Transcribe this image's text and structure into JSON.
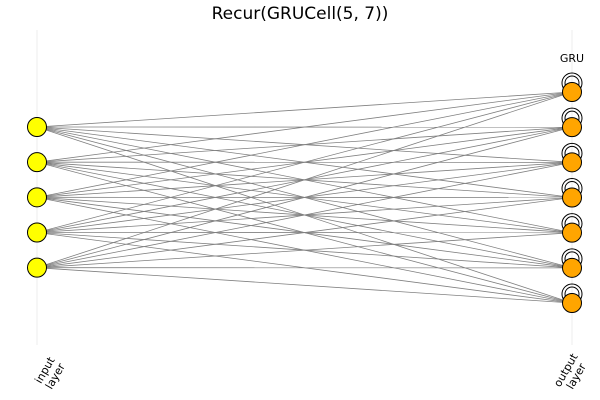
{
  "title": "Recur(GRUCell(5, 7))",
  "layers": [
    {
      "name": "input layer",
      "label_lines": [
        "input",
        "layer"
      ],
      "node_count": 5,
      "node_color": "#ffff00"
    },
    {
      "name": "output layer",
      "label_lines": [
        "output",
        "layer"
      ],
      "node_count": 7,
      "node_color": "#ffa500",
      "top_label": "GRU",
      "recurrent": true
    }
  ],
  "colors": {
    "edge": "#808080",
    "node_stroke": "#000000",
    "guide": "#eeeeee"
  }
}
